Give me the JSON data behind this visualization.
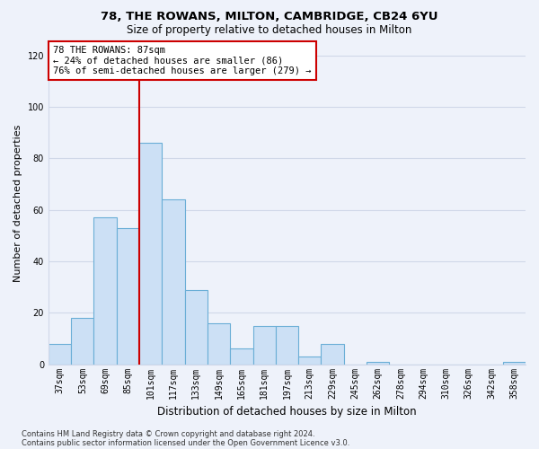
{
  "title": "78, THE ROWANS, MILTON, CAMBRIDGE, CB24 6YU",
  "subtitle": "Size of property relative to detached houses in Milton",
  "xlabel": "Distribution of detached houses by size in Milton",
  "ylabel": "Number of detached properties",
  "categories": [
    "37sqm",
    "53sqm",
    "69sqm",
    "85sqm",
    "101sqm",
    "117sqm",
    "133sqm",
    "149sqm",
    "165sqm",
    "181sqm",
    "197sqm",
    "213sqm",
    "229sqm",
    "245sqm",
    "262sqm",
    "278sqm",
    "294sqm",
    "310sqm",
    "326sqm",
    "342sqm",
    "358sqm"
  ],
  "values": [
    8,
    18,
    57,
    53,
    86,
    64,
    29,
    16,
    6,
    15,
    15,
    3,
    8,
    0,
    1,
    0,
    0,
    0,
    0,
    0,
    1
  ],
  "bar_color": "#cce0f5",
  "bar_edge_color": "#6aaed6",
  "vline_x_index": 3,
  "vline_color": "#cc0000",
  "annotation_text": "78 THE ROWANS: 87sqm\n← 24% of detached houses are smaller (86)\n76% of semi-detached houses are larger (279) →",
  "annotation_box_color": "#ffffff",
  "annotation_box_edge_color": "#cc0000",
  "ylim": [
    0,
    125
  ],
  "yticks": [
    0,
    20,
    40,
    60,
    80,
    100,
    120
  ],
  "grid_color": "#d0d8e8",
  "footer1": "Contains HM Land Registry data © Crown copyright and database right 2024.",
  "footer2": "Contains public sector information licensed under the Open Government Licence v3.0.",
  "bg_color": "#eef2fa",
  "title_fontsize": 9.5,
  "subtitle_fontsize": 8.5,
  "ylabel_fontsize": 8,
  "xlabel_fontsize": 8.5,
  "tick_fontsize": 7,
  "annot_fontsize": 7.5,
  "footer_fontsize": 6
}
